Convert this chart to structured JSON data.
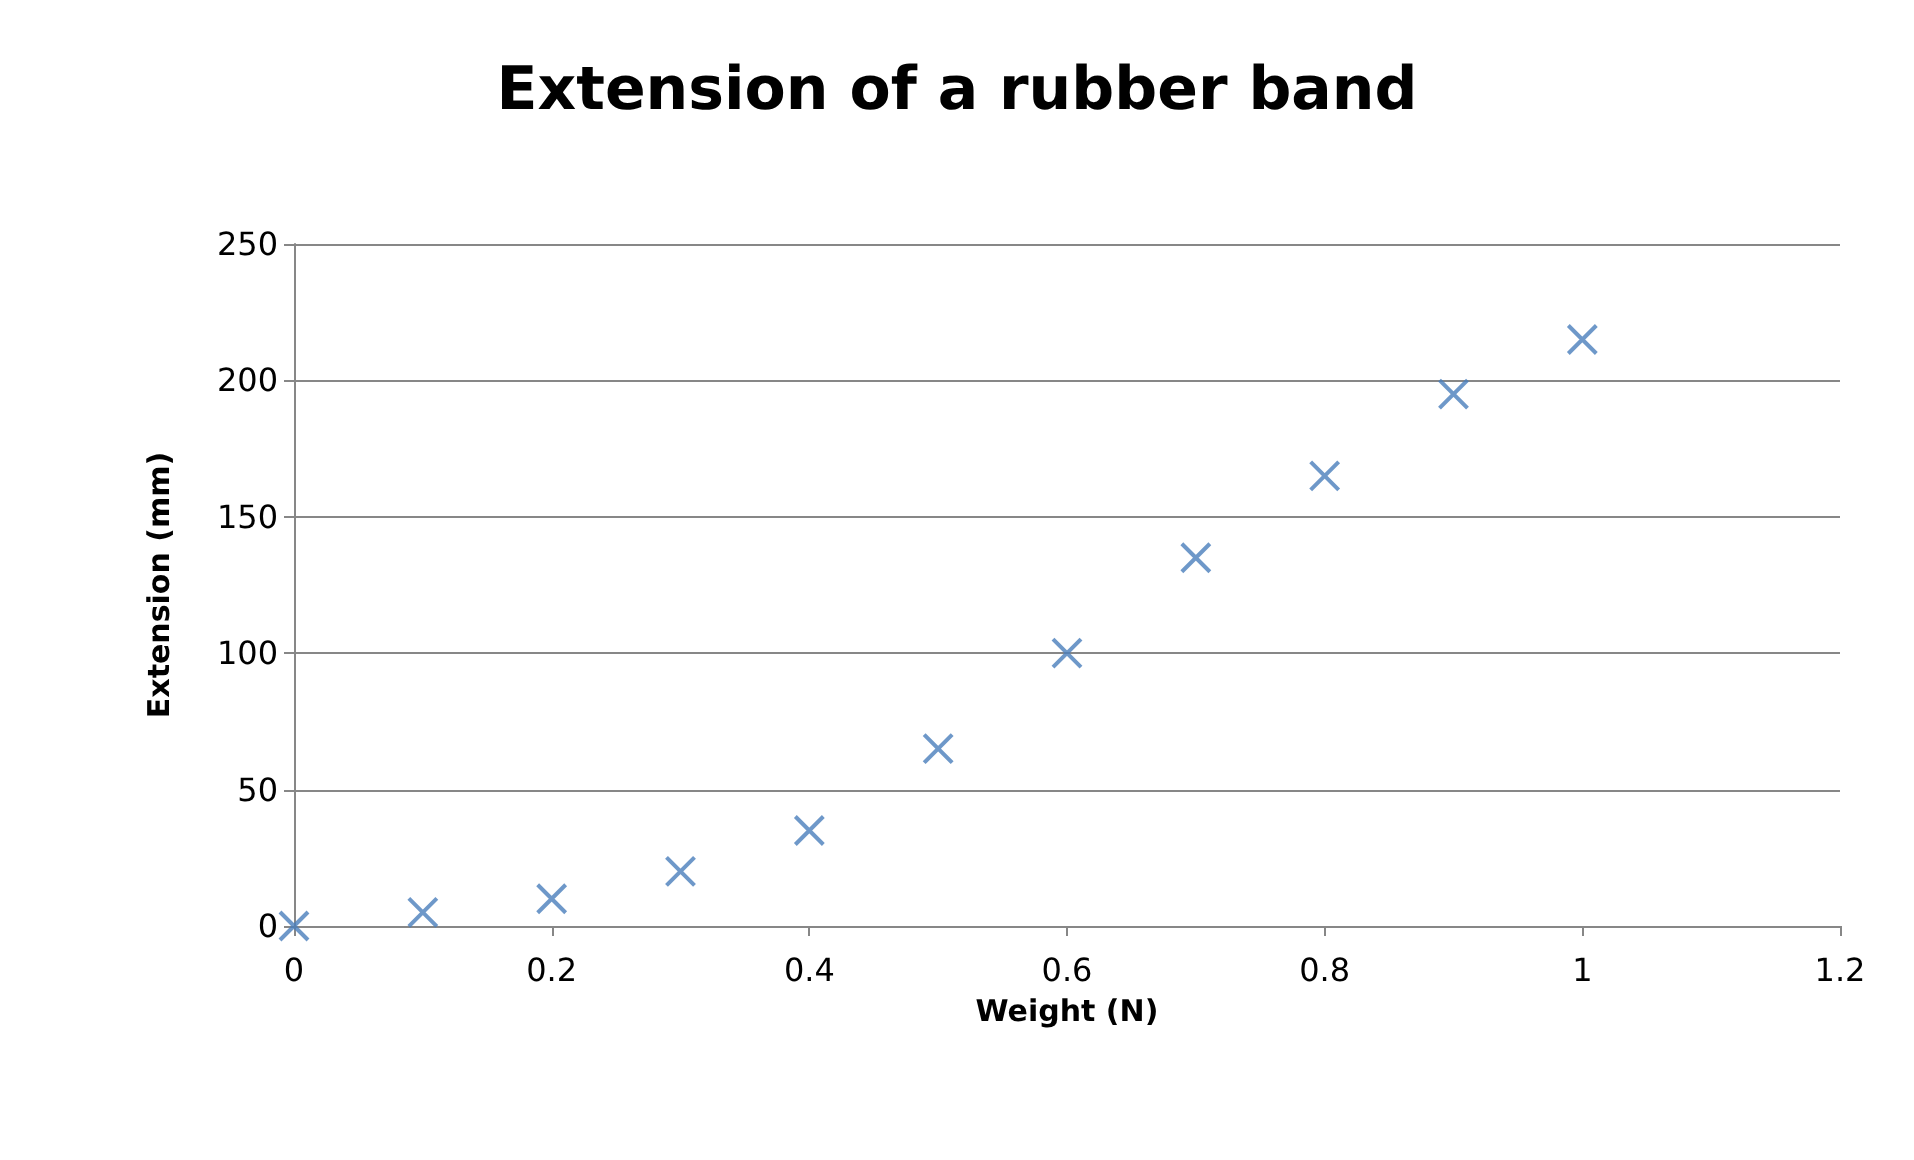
{
  "chart_data": {
    "type": "scatter",
    "title": "Extension of a rubber band",
    "xlabel": "Weight (N)",
    "ylabel": "Extension (mm)",
    "x": [
      0,
      0.1,
      0.2,
      0.3,
      0.4,
      0.5,
      0.6,
      0.7,
      0.8,
      0.9,
      1
    ],
    "series": [
      {
        "color": "#4a7ebb",
        "values": [
          0,
          5,
          10,
          20,
          35,
          65,
          100,
          135,
          165,
          195,
          215
        ]
      }
    ],
    "xlim": [
      0,
      1.2
    ],
    "xticks": [
      0,
      0.2,
      0.4,
      0.6,
      0.8,
      1,
      1.2
    ],
    "ylim": [
      0,
      250
    ],
    "yticks": [
      0,
      50,
      100,
      150,
      200,
      250
    ],
    "grid": "y",
    "marker": "cross"
  }
}
